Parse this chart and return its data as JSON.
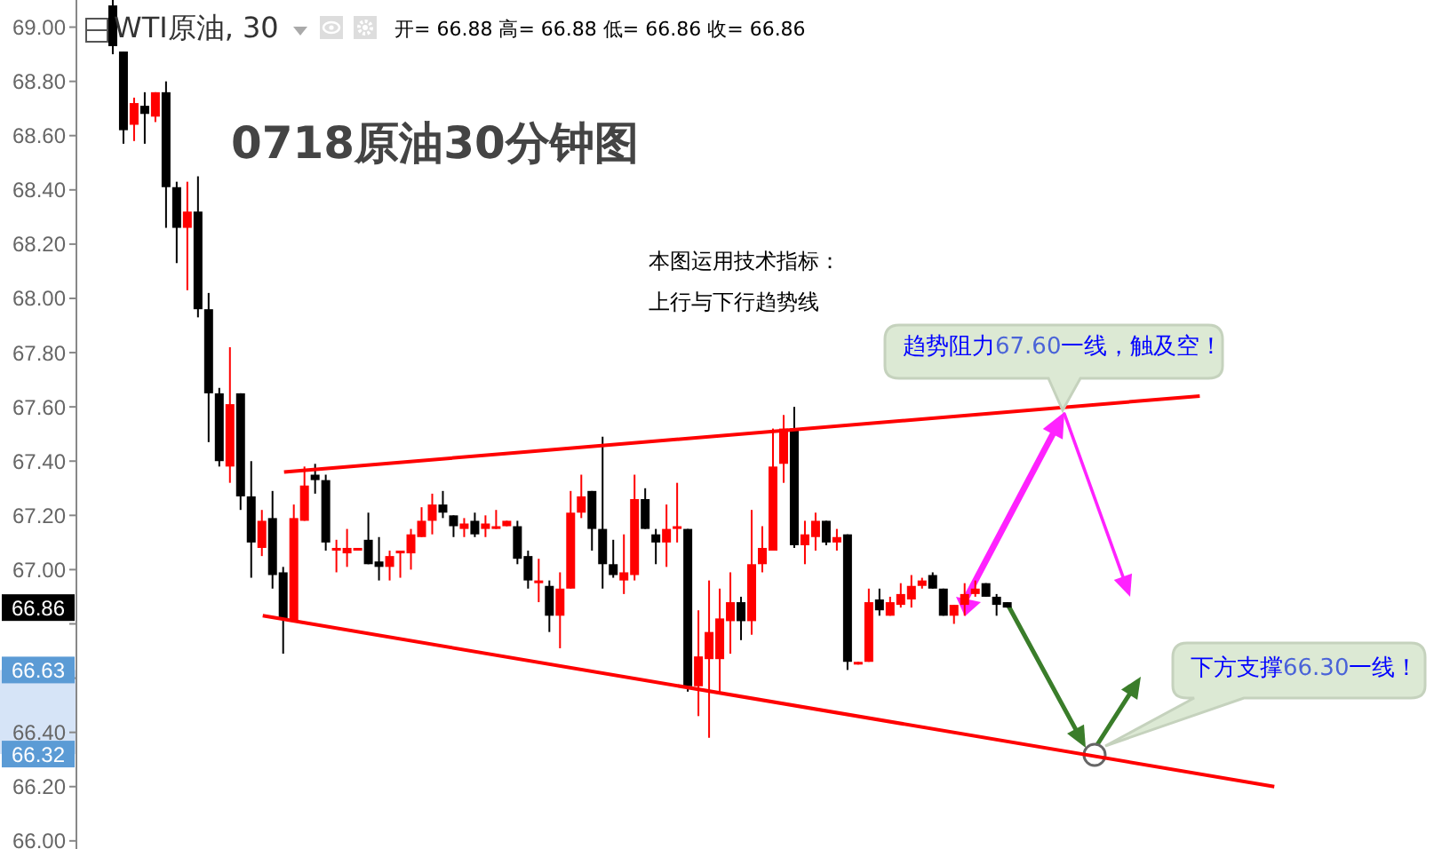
{
  "chart_data": {
    "type": "candlestick",
    "title": "0718原油30分钟图",
    "annotations": [
      "WTI原油, 30",
      "开= 66.88 高= 66.88 低= 66.86 收= 66.86",
      "本图运用技术指标：",
      "上行与下行趋势线",
      "趋势阻力67.60一线，触及空！",
      "下方支撑66.30一线！",
      {
        "text": "66.86",
        "y": 66.86
      },
      {
        "text": "66.63",
        "y": 66.63
      },
      {
        "text": "66.32",
        "y": 66.32
      }
    ],
    "categories": [
      null,
      null,
      null,
      null,
      null,
      null,
      null,
      null,
      null,
      null,
      null,
      null,
      null,
      null,
      null,
      null,
      null,
      null,
      null,
      null,
      null,
      null,
      null,
      null,
      null,
      null,
      null,
      null,
      null,
      null,
      null,
      null,
      null,
      null,
      null,
      null,
      null,
      null,
      null,
      null,
      null,
      null,
      null,
      null,
      null,
      null,
      null,
      null,
      null,
      null,
      null,
      null,
      null,
      null,
      null,
      null,
      null,
      null,
      null,
      null,
      null,
      null,
      null,
      null,
      null,
      null,
      null,
      null,
      null,
      null,
      null,
      null,
      null,
      null,
      null,
      null,
      null,
      null,
      null,
      null,
      null,
      null,
      null,
      null,
      null,
      null,
      null,
      null,
      null,
      null,
      null,
      null,
      null,
      null,
      null,
      null,
      null,
      null,
      null,
      null,
      null,
      null,
      null,
      null,
      null,
      null,
      null,
      null,
      null,
      null,
      null,
      null,
      null,
      null,
      null,
      null,
      null,
      null,
      null,
      null,
      null,
      null,
      null,
      null,
      null,
      null,
      null,
      null,
      null
    ],
    "ohlc": [
      null,
      null,
      null,
      [
        69.08,
        69.1,
        68.9,
        68.93
      ],
      [
        68.91,
        68.91,
        68.57,
        68.62
      ],
      [
        68.64,
        68.74,
        68.58,
        68.72
      ],
      [
        68.71,
        68.76,
        68.57,
        68.68
      ],
      [
        68.67,
        68.76,
        68.65,
        68.76
      ],
      [
        68.76,
        68.8,
        68.26,
        68.41
      ],
      [
        68.41,
        68.43,
        68.13,
        68.26
      ],
      [
        68.26,
        68.43,
        68.03,
        68.32
      ],
      [
        68.32,
        68.45,
        67.93,
        67.96
      ],
      [
        67.96,
        68.02,
        67.47,
        67.65
      ],
      [
        67.65,
        67.67,
        67.38,
        67.4
      ],
      [
        67.38,
        67.82,
        67.32,
        67.61
      ],
      [
        67.65,
        67.65,
        67.22,
        67.27
      ],
      [
        67.27,
        67.4,
        66.97,
        67.1
      ],
      [
        67.08,
        67.22,
        67.05,
        67.18
      ],
      [
        67.19,
        67.29,
        66.93,
        66.98
      ],
      [
        66.99,
        67.01,
        66.69,
        66.82
      ],
      [
        66.81,
        67.24,
        66.81,
        67.19
      ],
      [
        67.18,
        67.38,
        67.18,
        67.31
      ],
      [
        67.35,
        67.39,
        67.28,
        67.33
      ],
      [
        67.33,
        67.35,
        67.07,
        67.1
      ],
      [
        67.07,
        67.11,
        66.99,
        67.08
      ],
      [
        67.06,
        67.15,
        67.01,
        67.08
      ],
      [
        67.07,
        67.08,
        67.07,
        67.08
      ],
      [
        67.11,
        67.21,
        67.02,
        67.02
      ],
      [
        67.03,
        67.12,
        66.96,
        67.01
      ],
      [
        67.01,
        67.07,
        66.96,
        67.05
      ],
      [
        67.06,
        67.07,
        66.97,
        67.07
      ],
      [
        67.06,
        67.15,
        67.0,
        67.13
      ],
      [
        67.12,
        67.23,
        67.12,
        67.18
      ],
      [
        67.18,
        67.28,
        67.13,
        67.24
      ],
      [
        67.24,
        67.29,
        67.19,
        67.21
      ],
      [
        67.2,
        67.2,
        67.12,
        67.16
      ],
      [
        67.15,
        67.19,
        67.12,
        67.17
      ],
      [
        67.18,
        67.21,
        67.12,
        67.13
      ],
      [
        67.15,
        67.2,
        67.12,
        67.17
      ],
      [
        67.15,
        67.22,
        67.15,
        67.16
      ],
      [
        67.16,
        67.18,
        67.16,
        67.18
      ],
      [
        67.16,
        67.18,
        67.02,
        67.04
      ],
      [
        67.05,
        67.07,
        66.93,
        66.96
      ],
      [
        66.95,
        67.04,
        66.88,
        66.96
      ],
      [
        66.94,
        66.96,
        66.77,
        66.83
      ],
      [
        66.83,
        66.99,
        66.71,
        66.93
      ],
      [
        66.93,
        67.29,
        66.93,
        67.21
      ],
      [
        67.21,
        67.35,
        67.19,
        67.27
      ],
      [
        67.29,
        67.29,
        67.07,
        67.15
      ],
      [
        67.15,
        67.49,
        66.93,
        67.02
      ],
      [
        67.02,
        67.11,
        66.97,
        66.98
      ],
      [
        66.96,
        67.13,
        66.91,
        66.99
      ],
      [
        66.98,
        67.35,
        66.96,
        67.26
      ],
      [
        67.26,
        67.3,
        67.15,
        67.15
      ],
      [
        67.13,
        67.15,
        67.02,
        67.1
      ],
      [
        67.1,
        67.24,
        67.01,
        67.15
      ],
      [
        67.15,
        67.32,
        67.1,
        67.16
      ],
      [
        67.15,
        67.15,
        66.55,
        66.57
      ],
      [
        66.57,
        66.85,
        66.46,
        66.68
      ],
      [
        66.67,
        66.96,
        66.38,
        66.77
      ],
      [
        66.67,
        66.93,
        66.55,
        66.82
      ],
      [
        66.81,
        66.99,
        66.69,
        66.88
      ],
      [
        66.88,
        66.9,
        66.74,
        66.81
      ],
      [
        66.81,
        67.22,
        66.76,
        67.02
      ],
      [
        67.02,
        67.16,
        66.99,
        67.08
      ],
      [
        67.07,
        67.52,
        67.07,
        67.38
      ],
      [
        67.39,
        67.57,
        67.32,
        67.52
      ],
      [
        67.52,
        67.6,
        67.08,
        67.09
      ],
      [
        67.09,
        67.18,
        67.02,
        67.13
      ],
      [
        67.12,
        67.21,
        67.07,
        67.18
      ],
      [
        67.18,
        67.18,
        67.09,
        67.1
      ],
      [
        67.1,
        67.15,
        67.07,
        67.12
      ],
      [
        67.13,
        67.13,
        66.63,
        66.66
      ],
      [
        66.65,
        66.66,
        66.65,
        66.66
      ],
      [
        66.66,
        66.93,
        66.66,
        66.88
      ],
      [
        66.89,
        66.93,
        66.83,
        66.85
      ],
      [
        66.83,
        66.9,
        66.83,
        66.88
      ],
      [
        66.87,
        66.95,
        66.86,
        66.91
      ],
      [
        66.89,
        66.98,
        66.86,
        66.94
      ],
      [
        66.94,
        66.97,
        66.93,
        66.96
      ],
      [
        66.98,
        66.99,
        66.93,
        66.93
      ],
      [
        66.93,
        66.93,
        66.83,
        66.83
      ],
      [
        66.83,
        66.87,
        66.8,
        66.87
      ],
      [
        66.87,
        66.95,
        66.83,
        66.91
      ],
      [
        66.91,
        66.96,
        66.9,
        66.93
      ],
      [
        66.95,
        66.95,
        66.9,
        66.9
      ],
      [
        66.9,
        66.91,
        66.83,
        66.87
      ],
      [
        66.88,
        66.88,
        66.86,
        66.86
      ],
      null,
      null,
      null,
      null,
      null,
      null,
      null,
      null,
      null,
      null,
      null,
      null,
      null,
      null,
      null,
      null,
      null,
      null,
      null,
      null,
      null,
      null,
      null,
      null,
      null,
      null,
      null,
      null,
      null,
      null,
      null,
      null,
      null,
      null,
      null,
      null,
      null,
      null,
      null,
      null,
      null
    ],
    "colors": [
      null,
      null,
      null,
      "#000000",
      "#000000",
      "#ff0000",
      "#000000",
      "#ff0000",
      "#000000",
      "#000000",
      "#ff0000",
      "#000000",
      "#000000",
      "#000000",
      "#ff0000",
      "#000000",
      "#000000",
      "#ff0000",
      "#000000",
      "#000000",
      "#ff0000",
      "#ff0000",
      "#000000",
      "#000000",
      "#ff0000",
      "#ff0000",
      "#ff0000",
      "#000000",
      "#000000",
      "#ff0000",
      "#ff0000",
      "#ff0000",
      "#ff0000",
      "#ff0000",
      "#000000",
      "#000000",
      "#ff0000",
      "#000000",
      "#ff0000",
      "#ff0000",
      "#ff0000",
      "#000000",
      "#000000",
      "#ff0000",
      "#000000",
      "#ff0000",
      "#ff0000",
      "#ff0000",
      "#000000",
      "#000000",
      "#000000",
      "#ff0000",
      "#ff0000",
      "#000000",
      "#000000",
      "#ff0000",
      "#ff0000",
      "#000000",
      "#ff0000",
      "#ff0000",
      "#ff0000",
      "#ff0000",
      "#000000",
      "#ff0000",
      "#ff0000",
      "#ff0000",
      "#ff0000",
      "#000000",
      "#ff0000",
      "#ff0000",
      "#000000",
      "#ff0000",
      "#000000",
      "#ff0000",
      "#ff0000",
      "#000000",
      "#ff0000",
      "#ff0000",
      "#ff0000",
      "#ff0000",
      "#000000",
      "#000000",
      "#ff0000",
      "#ff0000",
      "#ff0000",
      "#000000",
      "#000000",
      "#000000",
      null,
      null,
      null,
      null,
      null,
      null,
      null,
      null,
      null,
      null,
      null,
      null,
      null,
      null,
      null,
      null,
      null,
      null,
      null,
      null,
      null,
      null,
      null,
      null,
      null,
      null,
      null,
      null,
      null,
      null,
      null,
      null,
      null,
      null,
      null,
      null,
      null,
      null,
      null,
      null,
      null
    ],
    "series": [
      {
        "type": "line",
        "color": "#ff0000",
        "values": [
          null,
          null,
          null,
          null,
          null,
          null,
          null,
          null,
          null,
          null,
          null,
          null,
          null,
          null,
          null,
          null,
          null,
          null,
          null,
          67.36,
          null,
          null,
          null,
          null,
          null,
          null,
          null,
          null,
          null,
          null,
          null,
          null,
          null,
          null,
          null,
          null,
          null,
          null,
          null,
          null,
          null,
          null,
          null,
          null,
          null,
          null,
          null,
          null,
          null,
          null,
          null,
          null,
          null,
          null,
          null,
          null,
          null,
          null,
          null,
          null,
          null,
          null,
          null,
          null,
          null,
          null,
          null,
          null,
          null,
          null,
          null,
          null,
          null,
          null,
          null,
          null,
          null,
          null,
          null,
          null,
          null,
          null,
          null,
          null,
          null,
          null,
          null,
          null,
          null,
          null,
          null,
          null,
          null,
          null,
          null,
          null,
          null,
          null,
          null,
          null,
          null,
          null,
          null,
          null,
          null,
          67.64,
          null,
          null,
          null,
          null,
          null,
          null,
          null,
          null,
          null,
          null,
          null,
          null,
          null,
          null,
          null,
          null,
          null,
          null,
          null,
          null,
          null,
          null,
          null
        ]
      },
      {
        "type": "line",
        "color": "#ff0000",
        "values": [
          null,
          null,
          null,
          null,
          null,
          null,
          null,
          null,
          null,
          null,
          null,
          null,
          null,
          null,
          null,
          null,
          null,
          66.83,
          null,
          null,
          null,
          null,
          null,
          null,
          null,
          null,
          null,
          null,
          null,
          null,
          null,
          null,
          null,
          null,
          null,
          null,
          null,
          null,
          null,
          null,
          null,
          null,
          null,
          null,
          null,
          null,
          null,
          null,
          null,
          null,
          null,
          null,
          null,
          null,
          null,
          null,
          null,
          null,
          null,
          null,
          null,
          null,
          null,
          null,
          null,
          null,
          null,
          null,
          null,
          null,
          null,
          null,
          null,
          null,
          null,
          null,
          null,
          null,
          null,
          null,
          null,
          null,
          null,
          null,
          null,
          null,
          null,
          null,
          null,
          null,
          null,
          null,
          null,
          null,
          null,
          null,
          null,
          null,
          null,
          null,
          null,
          null,
          null,
          null,
          null,
          null,
          null,
          null,
          null,
          null,
          null,
          null,
          66.2,
          null,
          null,
          null,
          null,
          null,
          null,
          null,
          null,
          null,
          null,
          null,
          null,
          null,
          null,
          null,
          null
        ]
      }
    ],
    "ylim": [
      65.97,
      69.1
    ],
    "yticks": [
      {
        "value": 66.0,
        "label": "66.00"
      },
      {
        "value": 66.2,
        "label": "66.20"
      },
      {
        "value": 66.4,
        "label": "66.40"
      },
      {
        "value": 66.6,
        "label": null
      },
      {
        "value": 66.8,
        "label": null
      },
      {
        "value": 67.0,
        "label": "67.00"
      },
      {
        "value": 67.2,
        "label": "67.20"
      },
      {
        "value": 67.4,
        "label": "67.40"
      },
      {
        "value": 67.6,
        "label": "67.60"
      },
      {
        "value": 67.8,
        "label": "67.80"
      },
      {
        "value": 68.0,
        "label": "68.00"
      },
      {
        "value": 68.2,
        "label": "68.20"
      },
      {
        "value": 68.4,
        "label": "68.40"
      },
      {
        "value": 68.6,
        "label": "68.60"
      },
      {
        "value": 68.8,
        "label": "68.80"
      },
      {
        "value": 69.0,
        "label": "69.00"
      }
    ],
    "tick_labels": "y"
  }
}
